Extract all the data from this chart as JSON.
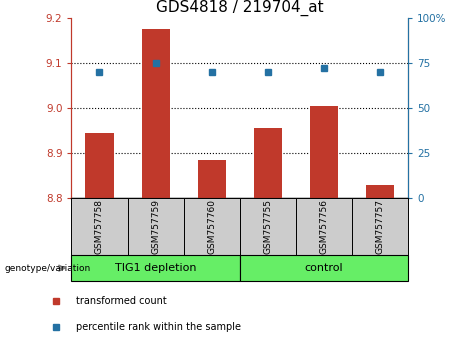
{
  "title": "GDS4818 / 219704_at",
  "samples": [
    "GSM757758",
    "GSM757759",
    "GSM757760",
    "GSM757755",
    "GSM757756",
    "GSM757757"
  ],
  "transformed_counts": [
    8.945,
    9.175,
    8.885,
    8.955,
    9.005,
    8.83
  ],
  "percentile_ranks": [
    70,
    75,
    70,
    70,
    72,
    70
  ],
  "ylim_left": [
    8.8,
    9.2
  ],
  "ylim_right": [
    0,
    100
  ],
  "yticks_left": [
    8.8,
    8.9,
    9.0,
    9.1,
    9.2
  ],
  "yticks_right": [
    0,
    25,
    50,
    75,
    100
  ],
  "bar_color": "#c0392b",
  "dot_color": "#2471a3",
  "bar_bottom": 8.8,
  "group1_label": "TIG1 depletion",
  "group2_label": "control",
  "group_color": "#66ee66",
  "sample_box_color": "#cccccc",
  "legend_red_label": "transformed count",
  "legend_blue_label": "percentile rank within the sample",
  "genotype_label": "genotype/variation",
  "title_fontsize": 11,
  "tick_fontsize": 7.5,
  "sample_fontsize": 6.5,
  "group_fontsize": 8,
  "legend_fontsize": 7
}
